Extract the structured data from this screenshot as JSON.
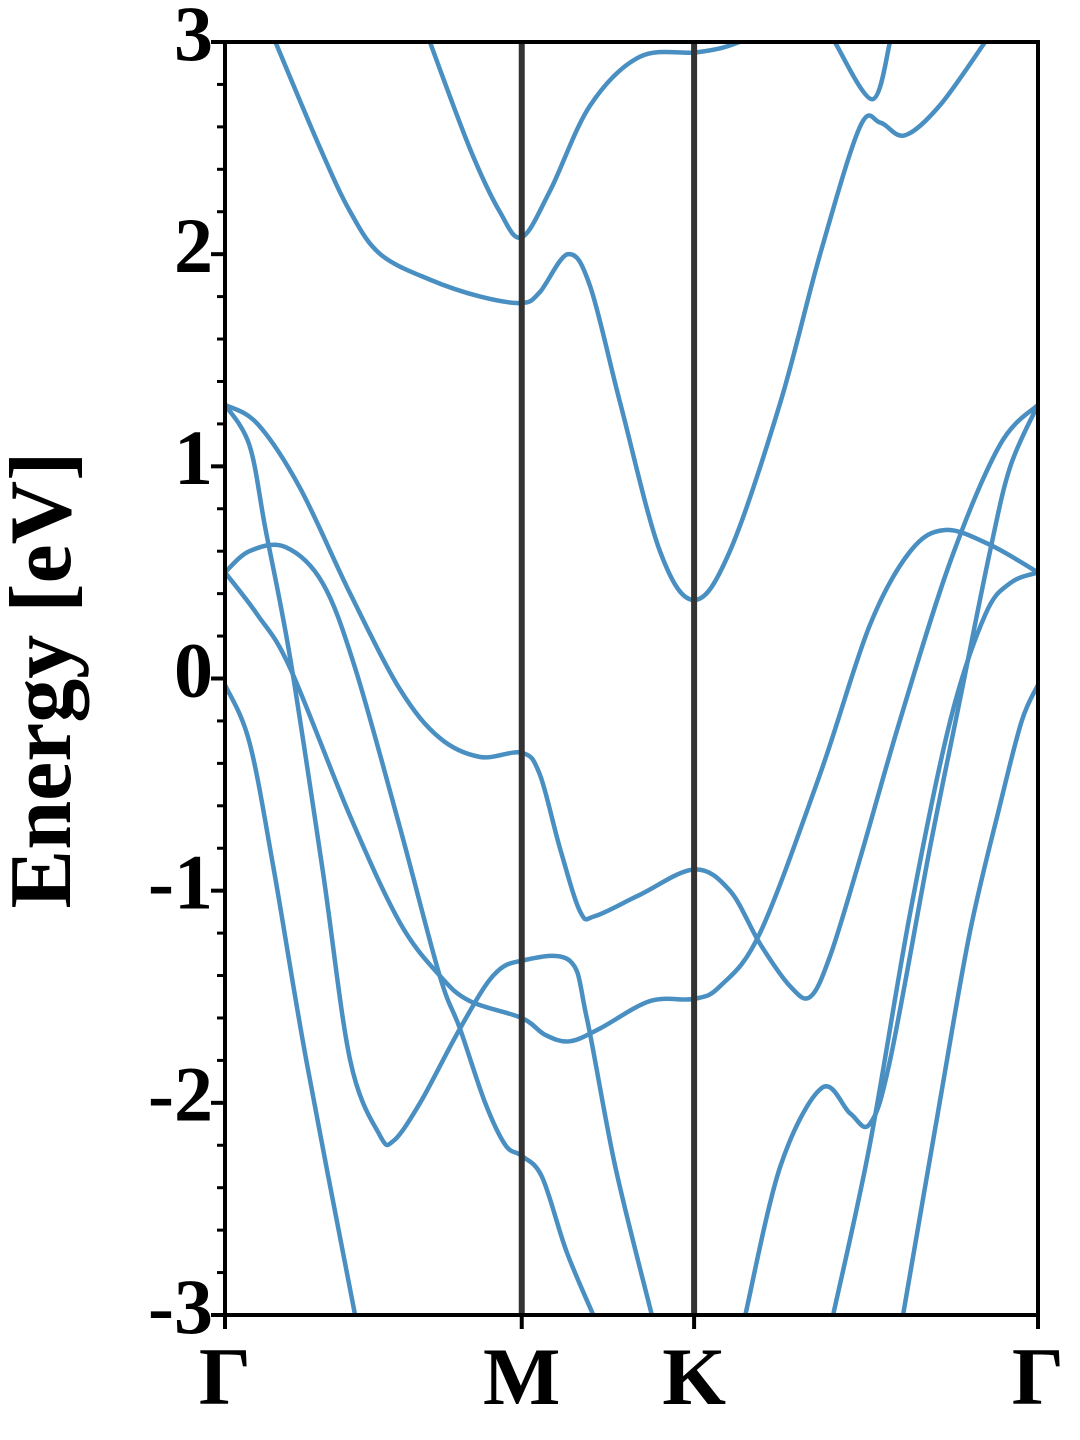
{
  "chart_data": {
    "type": "line",
    "ylabel": "Energy [eV]",
    "xlim": [
      0,
      1
    ],
    "ylim": [
      -3,
      3
    ],
    "xticks": [
      {
        "value": 0,
        "label": "Γ"
      },
      {
        "value": 0.365,
        "label": "M"
      },
      {
        "value": 0.577,
        "label": "K"
      },
      {
        "value": 1,
        "label": "Γ"
      }
    ],
    "yticks": [
      -3,
      -2,
      -1,
      0,
      1,
      2,
      3
    ],
    "color": "#4a8fc2",
    "series": [
      {
        "x": [
          0,
          0.03,
          0.06,
          0.1,
          0.16
        ],
        "values": [
          -0.03,
          -0.3,
          -0.9,
          -1.8,
          -3
        ]
      },
      {
        "x": [
          0,
          0.03,
          0.05,
          0.08,
          0.12,
          0.154,
          0.19,
          0.207,
          0.24,
          0.289,
          0.33,
          0.365,
          0.424,
          0.445,
          0.48,
          0.525
        ],
        "values": [
          1.29,
          1.1,
          0.7,
          0.1,
          -0.9,
          -1.8,
          -2.15,
          -2.18,
          -2.0,
          -1.65,
          -1.4,
          -1.33,
          -1.33,
          -1.6,
          -2.3,
          -3
        ]
      },
      {
        "x": [
          0,
          0.03,
          0.074,
          0.12,
          0.16,
          0.215,
          0.264,
          0.289,
          0.32,
          0.345,
          0.365,
          0.39,
          0.42,
          0.453
        ],
        "values": [
          0.5,
          0.6,
          0.62,
          0.45,
          0.05,
          -0.7,
          -1.4,
          -1.65,
          -2.0,
          -2.2,
          -2.25,
          -2.35,
          -2.7,
          -3
        ]
      },
      {
        "x": [
          0,
          0.04,
          0.08,
          0.154,
          0.215,
          0.264,
          0.301,
          0.365,
          0.394,
          0.424,
          0.461,
          0.523,
          0.577,
          0.609,
          0.658,
          0.732,
          0.793,
          0.843,
          0.886,
          0.941,
          1
        ],
        "values": [
          0.5,
          0.3,
          0.05,
          -0.65,
          -1.15,
          -1.4,
          -1.52,
          -1.6,
          -1.68,
          -1.71,
          -1.65,
          -1.52,
          -1.51,
          -1.45,
          -1.2,
          -0.45,
          0.25,
          0.6,
          0.7,
          0.63,
          0.5
        ]
      },
      {
        "x": [
          0,
          0.04,
          0.092,
          0.154,
          0.215,
          0.264,
          0.314,
          0.365,
          0.387,
          0.412,
          0.437,
          0.455,
          0.51,
          0.577,
          0.621,
          0.658,
          0.695,
          0.72,
          0.745,
          0.781,
          0.83,
          0.892,
          0.953,
          1
        ],
        "values": [
          1.29,
          1.2,
          0.9,
          0.4,
          -0.05,
          -0.28,
          -0.37,
          -0.35,
          -0.45,
          -0.8,
          -1.1,
          -1.12,
          -1.02,
          -0.9,
          -1.0,
          -1.25,
          -1.45,
          -1.5,
          -1.3,
          -0.85,
          -0.2,
          0.55,
          1.1,
          1.29
        ]
      },
      {
        "x": [
          0.64,
          0.683,
          0.734,
          0.769,
          0.793,
          0.818,
          0.867,
          0.904,
          0.941,
          0.966,
          1
        ],
        "values": [
          -3,
          -2.3,
          -1.93,
          -2.05,
          -2.1,
          -1.8,
          -0.8,
          -0.1,
          0.6,
          1.0,
          1.29
        ]
      },
      {
        "x": [
          0.748,
          0.793,
          0.843,
          0.892,
          0.935,
          0.966,
          1
        ],
        "values": [
          -3,
          -2.2,
          -1.1,
          -0.2,
          0.3,
          0.45,
          0.5
        ]
      },
      {
        "x": [
          0.834,
          0.879,
          0.916,
          0.953,
          0.98,
          1
        ],
        "values": [
          -3,
          -2,
          -1.2,
          -0.6,
          -0.2,
          -0.03
        ]
      },
      {
        "x": [
          0.062,
          0.117,
          0.154,
          0.191,
          0.252,
          0.314,
          0.365,
          0.387,
          0.422,
          0.449,
          0.486,
          0.535,
          0.577,
          0.621,
          0.683,
          0.732,
          0.781,
          0.806,
          0.836,
          0.879,
          0.935
        ],
        "values": [
          3,
          2.5,
          2.2,
          2.0,
          1.88,
          1.8,
          1.77,
          1.82,
          2.0,
          1.85,
          1.3,
          0.6,
          0.37,
          0.6,
          1.3,
          2.0,
          2.6,
          2.62,
          2.56,
          2.7,
          3
        ]
      },
      {
        "x": [
          0.252,
          0.301,
          0.338,
          0.365,
          0.4,
          0.449,
          0.51,
          0.577,
          0.609,
          0.633
        ],
        "values": [
          3,
          2.5,
          2.2,
          2.08,
          2.3,
          2.7,
          2.93,
          2.95,
          2.97,
          3
        ]
      },
      {
        "x": [
          0.75,
          0.796,
          0.818
        ],
        "values": [
          3,
          2.73,
          3
        ]
      }
    ]
  }
}
